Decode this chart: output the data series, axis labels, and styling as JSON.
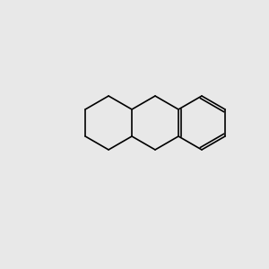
{
  "bg_color": "#e8e8e8",
  "bond_color": "#000000",
  "n_color": "#0000cc",
  "o_color": "#cc0000",
  "font_size": 7,
  "line_width": 1.2
}
